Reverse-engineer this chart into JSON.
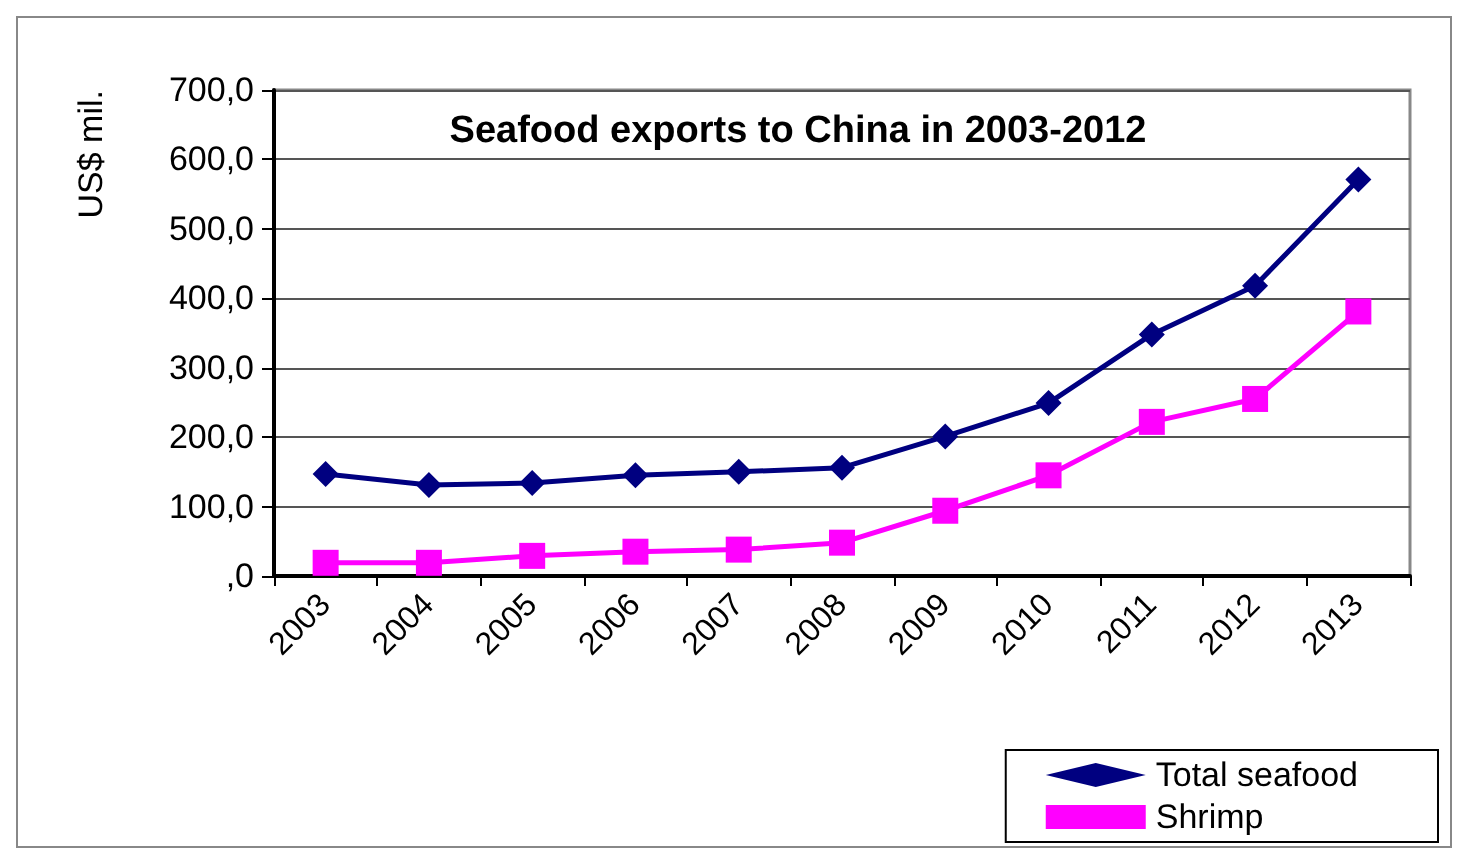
{
  "chart_data": {
    "type": "line",
    "title": "Seafood exports to China in 2003-2012",
    "ylabel": "US$ mil.",
    "categories": [
      "2003",
      "2004",
      "2005",
      "2006",
      "2007",
      "2008",
      "2009",
      "2010",
      "2011",
      "2012",
      "2013"
    ],
    "series": [
      {
        "name": "Total seafood",
        "color": "#000080",
        "marker": "diamond",
        "values": [
          147,
          131,
          134,
          145,
          150,
          156,
          201,
          249,
          348,
          418,
          571
        ]
      },
      {
        "name": "Shrimp",
        "color": "#ff00ff",
        "marker": "square",
        "values": [
          19,
          19,
          29,
          35,
          38,
          48,
          94,
          145,
          222,
          255,
          381
        ]
      }
    ],
    "ylim": [
      0,
      700
    ],
    "yticks": [
      {
        "value": 0,
        "label": ",0"
      },
      {
        "value": 100,
        "label": "100,0"
      },
      {
        "value": 200,
        "label": "200,0"
      },
      {
        "value": 300,
        "label": "300,0"
      },
      {
        "value": 400,
        "label": "400,0"
      },
      {
        "value": 500,
        "label": "500,0"
      },
      {
        "value": 600,
        "label": "600,0"
      },
      {
        "value": 700,
        "label": "700,0"
      }
    ],
    "grid": "y",
    "legend": "bottom right"
  }
}
